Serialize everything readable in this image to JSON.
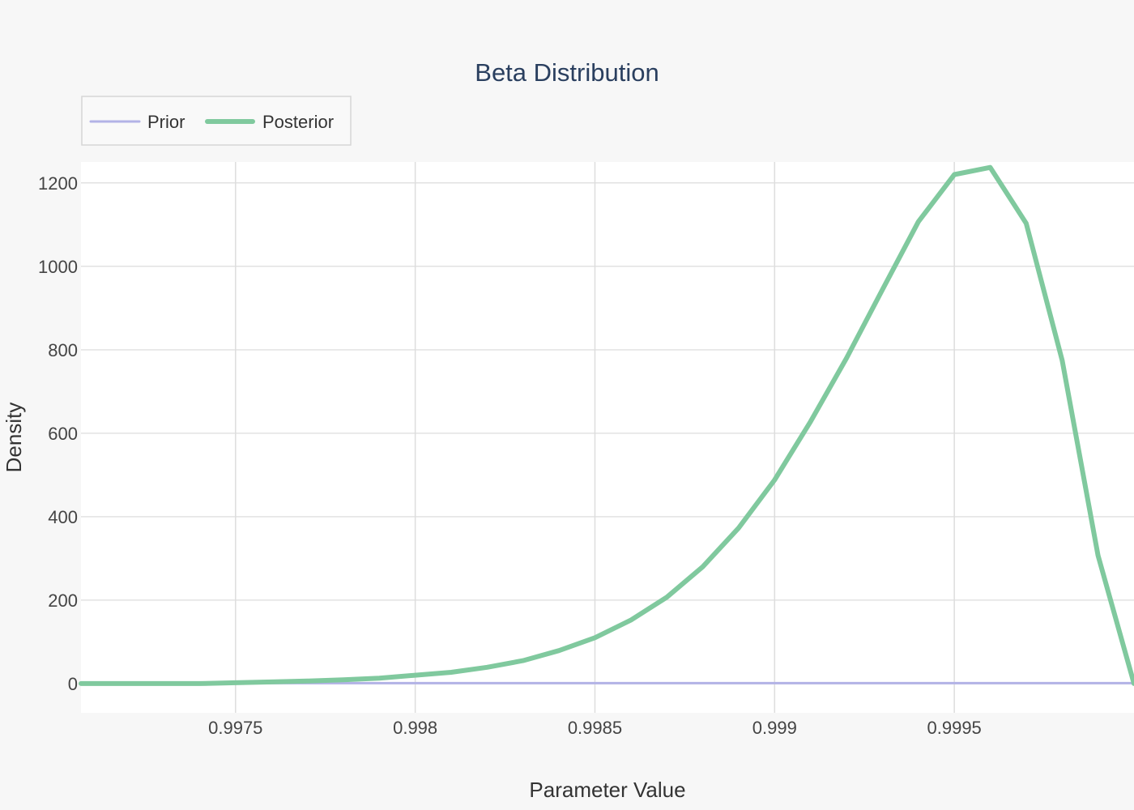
{
  "chart_data": {
    "type": "line",
    "title": "Beta Distribution",
    "xlabel": "Parameter Value",
    "ylabel": "Density",
    "xlim": [
      0.99707,
      1.0
    ],
    "ylim": [
      -70,
      1250
    ],
    "x_ticks": [
      {
        "value": 0.9975,
        "label": "0.9975"
      },
      {
        "value": 0.998,
        "label": "0.998"
      },
      {
        "value": 0.9985,
        "label": "0.9985"
      },
      {
        "value": 0.999,
        "label": "0.999"
      },
      {
        "value": 0.9995,
        "label": "0.9995"
      }
    ],
    "y_ticks": [
      {
        "value": 0,
        "label": "0"
      },
      {
        "value": 200,
        "label": "200"
      },
      {
        "value": 400,
        "label": "400"
      },
      {
        "value": 600,
        "label": "600"
      },
      {
        "value": 800,
        "label": "800"
      },
      {
        "value": 1000,
        "label": "1000"
      },
      {
        "value": 1200,
        "label": "1200"
      }
    ],
    "grid": true,
    "legend": {
      "position": "top-left",
      "orientation": "horizontal"
    },
    "series": [
      {
        "name": "Prior",
        "color": "#b3b3e6",
        "x": [
          0.99707,
          1.0
        ],
        "y": [
          1,
          1
        ]
      },
      {
        "name": "Posterior",
        "color": "#80c99e",
        "x": [
          0.99707,
          0.9974,
          0.9975,
          0.9976,
          0.9977,
          0.9978,
          0.9979,
          0.998,
          0.9981,
          0.9982,
          0.9983,
          0.9984,
          0.9985,
          0.9986,
          0.9987,
          0.9988,
          0.9989,
          0.999,
          0.9991,
          0.9992,
          0.9993,
          0.9994,
          0.9995,
          0.9996,
          0.9997,
          0.9998,
          0.9999,
          1.0
        ],
        "y": [
          0,
          0,
          2,
          4,
          6,
          9,
          13,
          20,
          27,
          39,
          55,
          79,
          110,
          152,
          207,
          280,
          373,
          488,
          628,
          780,
          944,
          1107,
          1220,
          1237,
          1103,
          775,
          307,
          0
        ]
      }
    ]
  }
}
